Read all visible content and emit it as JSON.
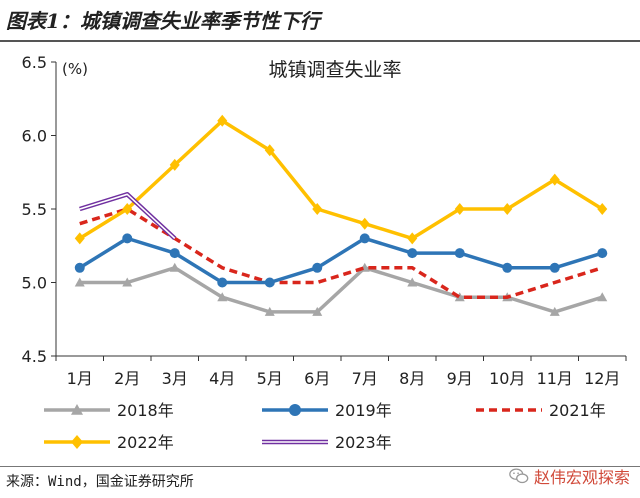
{
  "figure_title": "图表1：城镇调查失业率季节性下行",
  "source": "来源：Wind，国金证券研究所",
  "watermark": {
    "text": "赵伟宏观探索",
    "icon": "wechat-icon"
  },
  "chart_data": {
    "type": "line",
    "title": "城镇调查失业率",
    "ylabel": "(%)",
    "ylim": [
      4.5,
      6.5
    ],
    "yticks": [
      4.5,
      5.0,
      5.5,
      6.0,
      6.5
    ],
    "ytick_labels": [
      "4.5",
      "5.0",
      "5.5",
      "6.0",
      "6.5"
    ],
    "categories": [
      "1月",
      "2月",
      "3月",
      "4月",
      "5月",
      "6月",
      "7月",
      "8月",
      "9月",
      "10月",
      "11月",
      "12月"
    ],
    "grid": false,
    "legend_position": "bottom",
    "series": [
      {
        "name": "2018年",
        "color": "#a6a6a6",
        "style": "solid",
        "marker": "triangle",
        "values": [
          5.0,
          5.0,
          5.1,
          4.9,
          4.8,
          4.8,
          5.1,
          5.0,
          4.9,
          4.9,
          4.8,
          4.9
        ]
      },
      {
        "name": "2019年",
        "color": "#2e75b6",
        "style": "solid",
        "marker": "circle",
        "values": [
          5.1,
          5.3,
          5.2,
          5.0,
          5.0,
          5.1,
          5.3,
          5.2,
          5.2,
          5.1,
          5.1,
          5.2
        ]
      },
      {
        "name": "2021年",
        "color": "#d9261c",
        "style": "dashed",
        "marker": "none",
        "values": [
          5.4,
          5.5,
          5.3,
          5.1,
          5.0,
          5.0,
          5.1,
          5.1,
          4.9,
          4.9,
          5.0,
          5.1
        ]
      },
      {
        "name": "2022年",
        "color": "#ffc000",
        "style": "solid",
        "marker": "diamond",
        "values": [
          5.3,
          5.5,
          5.8,
          6.1,
          5.9,
          5.5,
          5.4,
          5.3,
          5.5,
          5.5,
          5.7,
          5.5
        ]
      },
      {
        "name": "2023年",
        "color": "#7030a0",
        "style": "double",
        "marker": "none",
        "values": [
          5.5,
          5.6,
          5.3,
          null,
          null,
          null,
          null,
          null,
          null,
          null,
          null,
          null
        ]
      }
    ]
  }
}
